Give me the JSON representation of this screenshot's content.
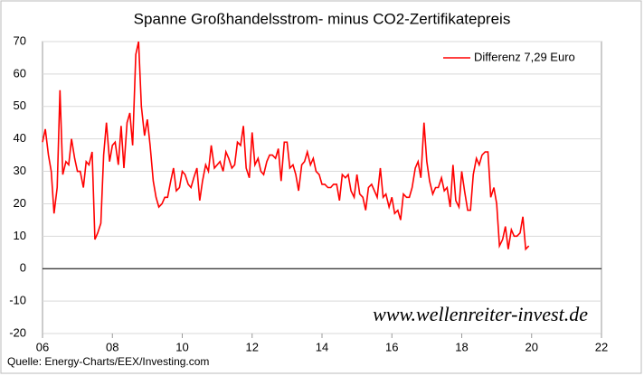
{
  "chart_data": {
    "type": "line",
    "title": "Spanne Großhandelsstrom- minus CO2-Zertifikatepreis",
    "source": "Quelle: Energy-Charts/EEX/Investing.com",
    "watermark": "www.wellenreiter-invest.de",
    "legend_position": "upper right",
    "grid": true,
    "negative_label_color": "#ff0000",
    "xlim": [
      2006,
      2022
    ],
    "xticks": [
      {
        "value": 2006,
        "label": "06"
      },
      {
        "value": 2008,
        "label": "08"
      },
      {
        "value": 2010,
        "label": "10"
      },
      {
        "value": 2012,
        "label": "12"
      },
      {
        "value": 2014,
        "label": "14"
      },
      {
        "value": 2016,
        "label": "16"
      },
      {
        "value": 2018,
        "label": "18"
      },
      {
        "value": 2020,
        "label": "20"
      },
      {
        "value": 2022,
        "label": "22"
      }
    ],
    "ylim": [
      -20,
      70
    ],
    "yticks": [
      -20,
      -10,
      0,
      10,
      20,
      30,
      40,
      50,
      60,
      70
    ],
    "x": [
      2006.0,
      2006.08,
      2006.17,
      2006.25,
      2006.33,
      2006.42,
      2006.5,
      2006.58,
      2006.67,
      2006.75,
      2006.83,
      2006.92,
      2007.0,
      2007.08,
      2007.17,
      2007.25,
      2007.33,
      2007.42,
      2007.5,
      2007.58,
      2007.67,
      2007.75,
      2007.83,
      2007.92,
      2008.0,
      2008.08,
      2008.17,
      2008.25,
      2008.33,
      2008.42,
      2008.5,
      2008.58,
      2008.67,
      2008.75,
      2008.83,
      2008.92,
      2009.0,
      2009.08,
      2009.17,
      2009.25,
      2009.33,
      2009.42,
      2009.5,
      2009.58,
      2009.67,
      2009.75,
      2009.83,
      2009.92,
      2010.0,
      2010.08,
      2010.17,
      2010.25,
      2010.33,
      2010.42,
      2010.5,
      2010.58,
      2010.67,
      2010.75,
      2010.83,
      2010.92,
      2011.0,
      2011.08,
      2011.17,
      2011.25,
      2011.33,
      2011.42,
      2011.5,
      2011.58,
      2011.67,
      2011.75,
      2011.83,
      2011.92,
      2012.0,
      2012.08,
      2012.17,
      2012.25,
      2012.33,
      2012.42,
      2012.5,
      2012.58,
      2012.67,
      2012.75,
      2012.83,
      2012.92,
      2013.0,
      2013.08,
      2013.17,
      2013.25,
      2013.33,
      2013.42,
      2013.5,
      2013.58,
      2013.67,
      2013.75,
      2013.83,
      2013.92,
      2014.0,
      2014.08,
      2014.17,
      2014.25,
      2014.33,
      2014.42,
      2014.5,
      2014.58,
      2014.67,
      2014.75,
      2014.83,
      2014.92,
      2015.0,
      2015.08,
      2015.17,
      2015.25,
      2015.33,
      2015.42,
      2015.5,
      2015.58,
      2015.67,
      2015.75,
      2015.83,
      2015.92,
      2016.0,
      2016.08,
      2016.17,
      2016.25,
      2016.33,
      2016.42,
      2016.5,
      2016.58,
      2016.67,
      2016.75,
      2016.83,
      2016.92,
      2017.0,
      2017.08,
      2017.17,
      2017.25,
      2017.33,
      2017.42,
      2017.5,
      2017.58,
      2017.67,
      2017.75,
      2017.83,
      2017.92,
      2018.0,
      2018.08,
      2018.17,
      2018.25,
      2018.33,
      2018.42,
      2018.5,
      2018.58,
      2018.67,
      2018.75,
      2018.83,
      2018.92,
      2019.0,
      2019.08,
      2019.17,
      2019.25,
      2019.33,
      2019.42,
      2019.5,
      2019.58,
      2019.67,
      2019.75,
      2019.83,
      2019.92
    ],
    "series": [
      {
        "name": "Differenz 7,29 Euro",
        "color": "#ff0000",
        "values": [
          39,
          43,
          35,
          30,
          17,
          25,
          55,
          29,
          33,
          32,
          40,
          34,
          30,
          30,
          25,
          33,
          32,
          36,
          9,
          11,
          14,
          35,
          45,
          33,
          38,
          39,
          32,
          44,
          31,
          45,
          48,
          38,
          66,
          70,
          50,
          41,
          46,
          38,
          27,
          22,
          19,
          20,
          22,
          22,
          27,
          31,
          24,
          25,
          30,
          29,
          26,
          25,
          28,
          31,
          21,
          27,
          32,
          30,
          38,
          31,
          32,
          33,
          30,
          36,
          34,
          31,
          32,
          39,
          38,
          44,
          31,
          28,
          42,
          32,
          34,
          30,
          29,
          33,
          35,
          35,
          34,
          37,
          27,
          39,
          39,
          31,
          32,
          29,
          24,
          32,
          33,
          36,
          32,
          34,
          30,
          29,
          26,
          26,
          25,
          25,
          26,
          26,
          21,
          29,
          28,
          29,
          24,
          22,
          29,
          23,
          22,
          18,
          25,
          26,
          24,
          22,
          31,
          22,
          23,
          19,
          22,
          17,
          18,
          15,
          23,
          22,
          22,
          25,
          31,
          33,
          28,
          45,
          33,
          27,
          23,
          25,
          25,
          28,
          24,
          25,
          19,
          32,
          21,
          19,
          30,
          24,
          18,
          18,
          29,
          34,
          32,
          35,
          36,
          36,
          22,
          25,
          20,
          7,
          9,
          13,
          6,
          12,
          10,
          10,
          11,
          16,
          6,
          7
        ]
      }
    ]
  }
}
